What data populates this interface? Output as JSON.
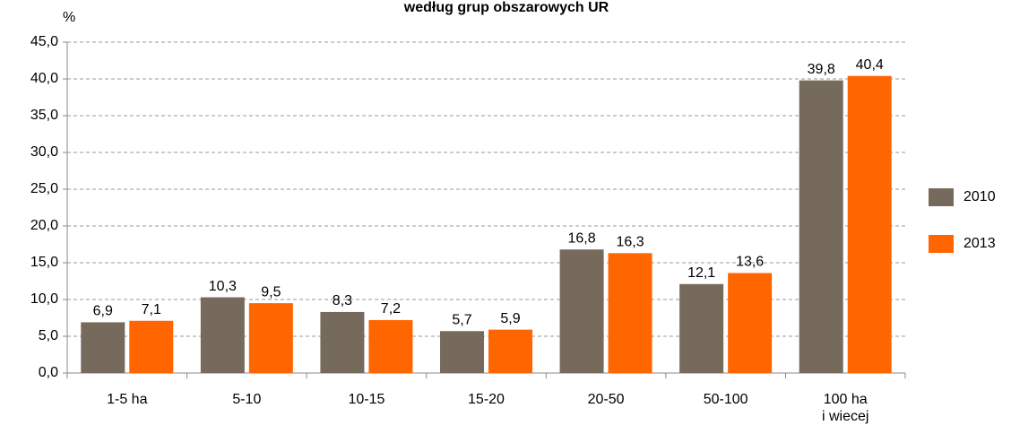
{
  "chart_data": {
    "type": "bar",
    "title": "według grup obszarowych UR",
    "y_label": "%",
    "categories": [
      "1-5 ha",
      "5-10",
      "10-15",
      "15-20",
      "20-50",
      "50-100",
      "100 ha\ni wiecej"
    ],
    "series": [
      {
        "name": "2010",
        "color": "#766a5c",
        "values": [
          6.9,
          10.3,
          8.3,
          5.7,
          16.8,
          12.1,
          39.8
        ],
        "value_labels": [
          "6,9",
          "10,3",
          "8,3",
          "5,7",
          "16,8",
          "12,1",
          "39,8"
        ]
      },
      {
        "name": "2013",
        "color": "#ff6600",
        "values": [
          7.1,
          9.5,
          7.2,
          5.9,
          16.3,
          13.6,
          40.4
        ],
        "value_labels": [
          "7,1",
          "9,5",
          "7,2",
          "5,9",
          "16,3",
          "13,6",
          "40,4"
        ]
      }
    ],
    "ylim": [
      0,
      45
    ],
    "yticks": [
      {
        "value": 0,
        "label": "0,0"
      },
      {
        "value": 5,
        "label": "5,0"
      },
      {
        "value": 10,
        "label": "10,0"
      },
      {
        "value": 15,
        "label": "15,0"
      },
      {
        "value": 20,
        "label": "20,0"
      },
      {
        "value": 25,
        "label": "25,0"
      },
      {
        "value": 30,
        "label": "30,0"
      },
      {
        "value": 35,
        "label": "35,0"
      },
      {
        "value": 40,
        "label": "40,0"
      },
      {
        "value": 45,
        "label": "45,0"
      }
    ],
    "grid": true,
    "legend": "right"
  }
}
